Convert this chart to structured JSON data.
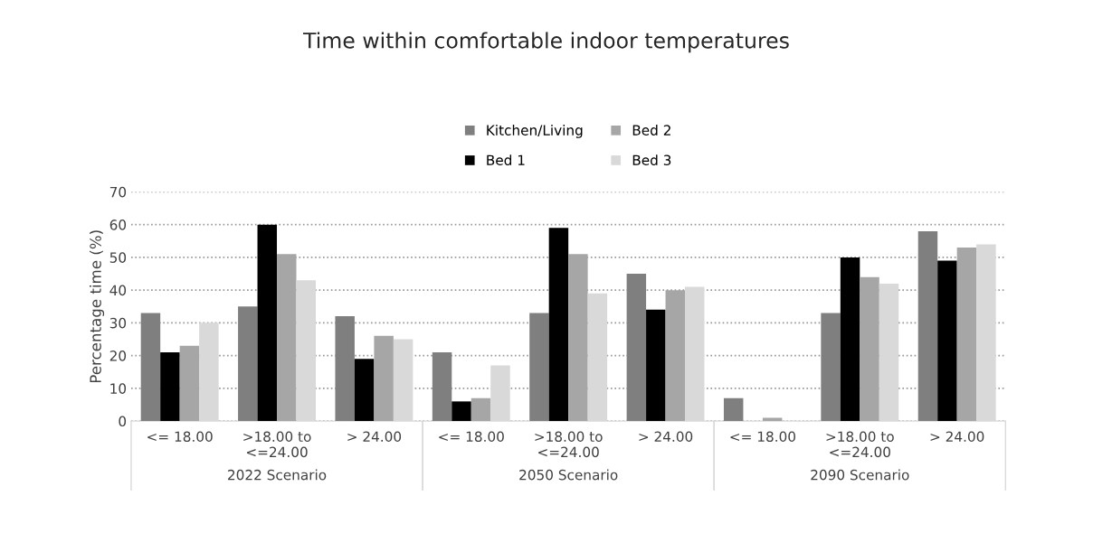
{
  "chart_data": {
    "type": "bar",
    "title": "Time within comfortable indoor temperatures",
    "ylabel": "Percentage time (%)",
    "categories": [
      "<= 18.00",
      ">18.00 to\n<=24.00",
      "> 24.00",
      "<= 18.00",
      ">18.00 to\n<=24.00",
      "> 24.00",
      "<= 18.00",
      ">18.00 to\n<=24.00",
      "> 24.00"
    ],
    "series": [
      {
        "name": "Kitchen/Living",
        "color": "#7f7f7f",
        "values": [
          33,
          35,
          32,
          21,
          33,
          45,
          7,
          33,
          58
        ]
      },
      {
        "name": "Bed 1",
        "color": "#000000",
        "values": [
          21,
          60,
          19,
          6,
          59,
          34,
          0,
          50,
          49
        ]
      },
      {
        "name": "Bed 2",
        "color": "#a6a6a6",
        "values": [
          23,
          51,
          26,
          7,
          51,
          40,
          1,
          44,
          53
        ]
      },
      {
        "name": "Bed 3",
        "color": "#d9d9d9",
        "values": [
          30,
          43,
          25,
          17,
          39,
          41,
          0,
          42,
          54
        ]
      }
    ],
    "annotations": [
      "2022 Scenario",
      "2050 Scenario",
      "2090 Scenario"
    ],
    "ylim": [
      0,
      70
    ],
    "yticks": [
      0,
      10,
      20,
      30,
      40,
      50,
      60,
      70
    ],
    "grid": "y",
    "legend": "top"
  }
}
